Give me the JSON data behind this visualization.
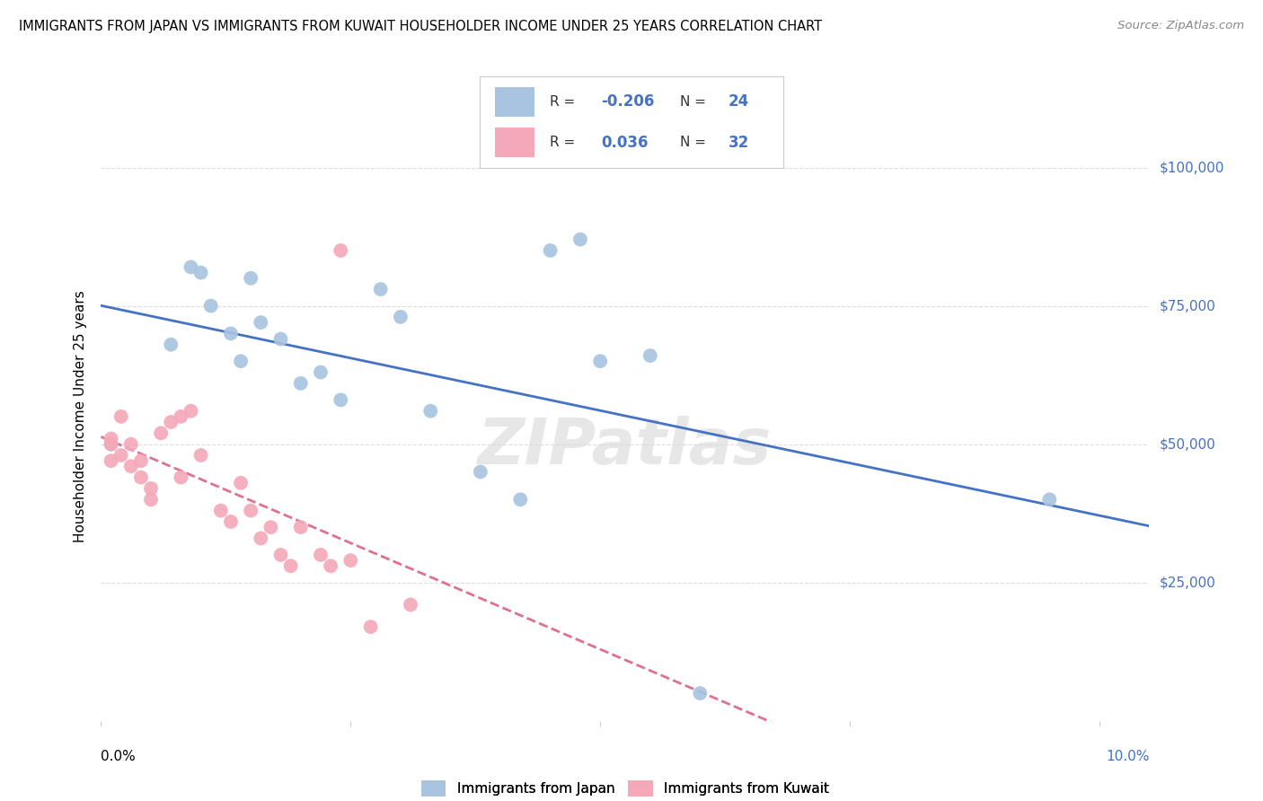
{
  "title": "IMMIGRANTS FROM JAPAN VS IMMIGRANTS FROM KUWAIT HOUSEHOLDER INCOME UNDER 25 YEARS CORRELATION CHART",
  "source": "Source: ZipAtlas.com",
  "ylabel": "Householder Income Under 25 years",
  "legend_label1": "Immigrants from Japan",
  "legend_label2": "Immigrants from Kuwait",
  "R1": "-0.206",
  "N1": "24",
  "R2": "0.036",
  "N2": "32",
  "japan_x": [
    0.001,
    0.007,
    0.009,
    0.01,
    0.011,
    0.013,
    0.014,
    0.015,
    0.016,
    0.018,
    0.02,
    0.022,
    0.024,
    0.028,
    0.03,
    0.033,
    0.038,
    0.042,
    0.045,
    0.048,
    0.05,
    0.055,
    0.06,
    0.095
  ],
  "japan_y": [
    50000,
    68000,
    82000,
    81000,
    75000,
    70000,
    65000,
    80000,
    72000,
    69000,
    61000,
    63000,
    58000,
    78000,
    73000,
    56000,
    45000,
    40000,
    85000,
    87000,
    65000,
    66000,
    5000,
    40000
  ],
  "kuwait_x": [
    0.001,
    0.001,
    0.001,
    0.002,
    0.002,
    0.003,
    0.003,
    0.004,
    0.004,
    0.005,
    0.005,
    0.006,
    0.007,
    0.008,
    0.008,
    0.009,
    0.01,
    0.012,
    0.013,
    0.014,
    0.015,
    0.016,
    0.017,
    0.018,
    0.019,
    0.02,
    0.022,
    0.023,
    0.024,
    0.025,
    0.027,
    0.031
  ],
  "kuwait_y": [
    47000,
    50000,
    51000,
    55000,
    48000,
    46000,
    50000,
    44000,
    47000,
    40000,
    42000,
    52000,
    54000,
    44000,
    55000,
    56000,
    48000,
    38000,
    36000,
    43000,
    38000,
    33000,
    35000,
    30000,
    28000,
    35000,
    30000,
    28000,
    85000,
    29000,
    17000,
    21000
  ],
  "japan_color": "#a8c4e0",
  "kuwait_color": "#f4a8b8",
  "japan_line_color": "#4472c4",
  "kuwait_line_color": "#e07090",
  "axis_color": "#4472c4",
  "ytick_labels": [
    "$25,000",
    "$50,000",
    "$75,000",
    "$100,000"
  ],
  "ytick_values": [
    25000,
    50000,
    75000,
    100000
  ],
  "ylim": [
    0,
    110000
  ],
  "xlim": [
    0.0,
    0.105
  ],
  "background_color": "#ffffff",
  "grid_color": "#dddddd",
  "watermark": "ZIPatlas"
}
